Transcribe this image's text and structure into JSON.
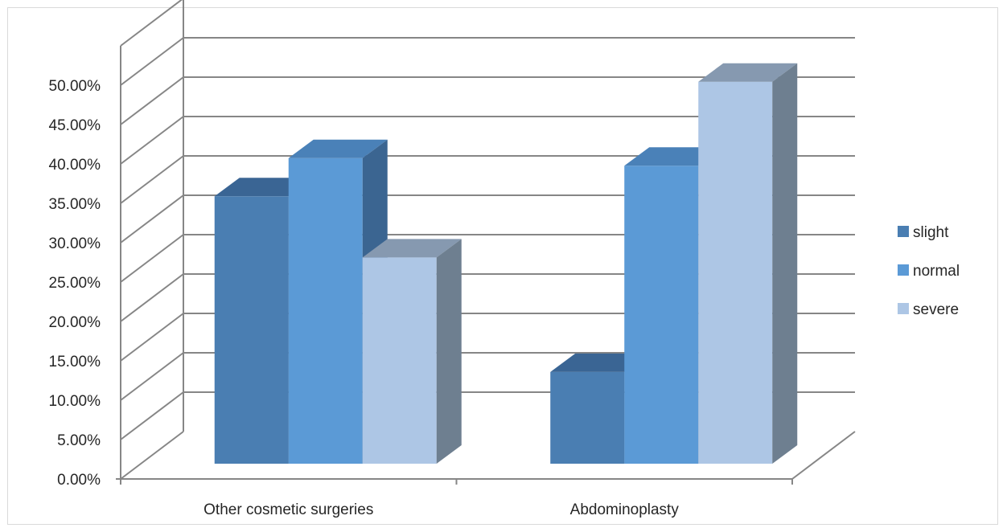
{
  "chart_data": {
    "type": "bar",
    "variant": "3d-clustered-column",
    "title": "",
    "xlabel": "",
    "ylabel": "",
    "categories": [
      "Other cosmetic surgeries",
      "Abdominoplasty"
    ],
    "series": [
      {
        "name": "slight",
        "values": [
          0.35,
          0.12
        ],
        "color": "#4a7eb2",
        "top_color": "#3a6594",
        "side_color": "#3a6390"
      },
      {
        "name": "normal",
        "values": [
          0.4,
          0.39
        ],
        "color": "#5b9ad6",
        "top_color": "#4a81b8",
        "side_color": "#3b6591"
      },
      {
        "name": "severe",
        "values": [
          0.27,
          0.5
        ],
        "color": "#adc6e5",
        "top_color": "#8699b0",
        "side_color": "#6e7f90"
      }
    ],
    "ylim": [
      0,
      0.5
    ],
    "y_ticks": [
      "0.00%",
      "5.00%",
      "10.00%",
      "15.00%",
      "20.00%",
      "25.00%",
      "30.00%",
      "35.00%",
      "40.00%",
      "45.00%",
      "50.00%"
    ],
    "grid": true,
    "legend_position": "right"
  }
}
